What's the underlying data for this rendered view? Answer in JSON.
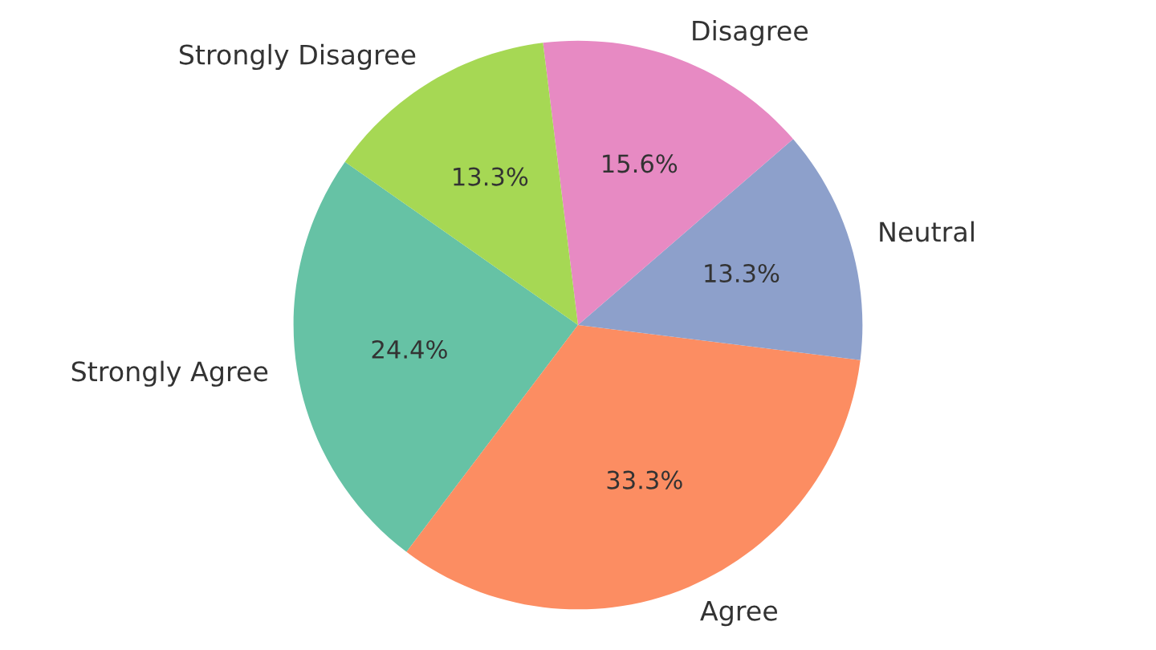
{
  "chart_data": {
    "type": "pie",
    "categories": [
      "Strongly Agree",
      "Agree",
      "Neutral",
      "Disagree",
      "Strongly Disagree"
    ],
    "values": [
      24.4,
      33.3,
      13.3,
      15.6,
      13.3
    ],
    "value_labels": [
      "24.4%",
      "33.3%",
      "13.3%",
      "15.6%",
      "13.3%"
    ],
    "colors": [
      "#66c2a5",
      "#fc8d62",
      "#8da0cb",
      "#e78ac3",
      "#a6d854"
    ]
  }
}
